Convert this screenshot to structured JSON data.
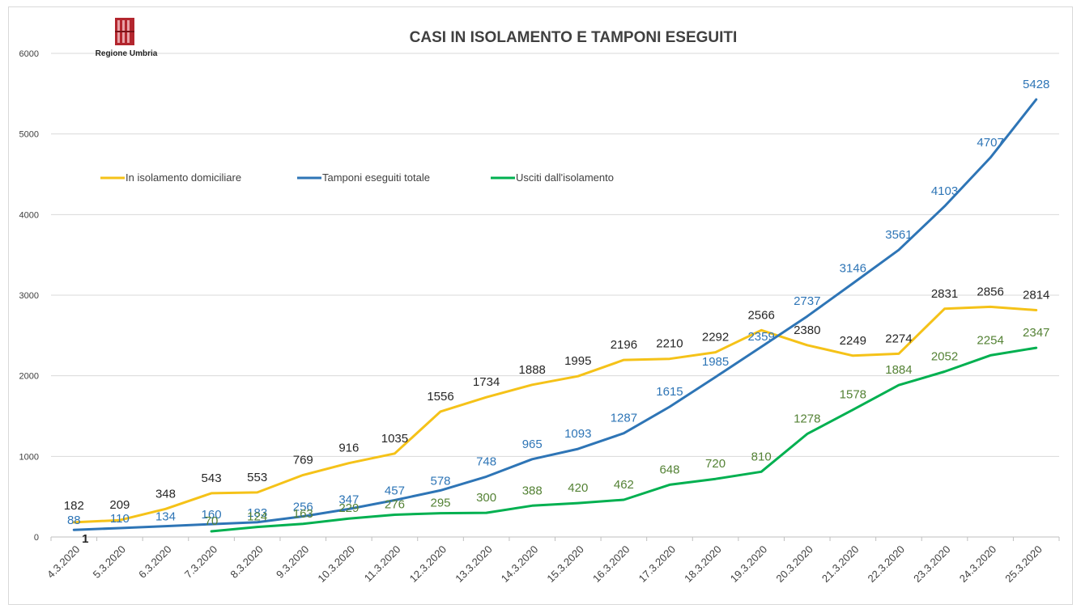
{
  "chart_data": {
    "type": "line",
    "title": "CASI IN ISOLAMENTO E TAMPONI ESEGUITI",
    "logo_text": "Regione Umbria",
    "categories": [
      "4.3.2020",
      "5.3.2020",
      "6.3.2020",
      "7.3.2020",
      "8.3.2020",
      "9.3.2020",
      "10.3.2020",
      "11.3.2020",
      "12.3.2020",
      "13.3.2020",
      "14.3.2020",
      "15.3.2020",
      "16.3.2020",
      "17.3.2020",
      "18.3.2020",
      "19.3.2020",
      "20.3.2020",
      "21.3.2020",
      "22.3.2020",
      "23.3.2020",
      "24.3.2020",
      "25.3.2020"
    ],
    "ylim": [
      0,
      6000
    ],
    "yticks": [
      0,
      1000,
      2000,
      3000,
      4000,
      5000,
      6000
    ],
    "grid": true,
    "legend_position": "top-left",
    "series": [
      {
        "name": "In isolamento domiciliare",
        "color": "#f5c218",
        "label_color": "#262626",
        "values": [
          182,
          209,
          348,
          543,
          553,
          769,
          916,
          1035,
          1556,
          1734,
          1888,
          1995,
          2196,
          2210,
          2292,
          2566,
          2380,
          2249,
          2274,
          2831,
          2856,
          2814
        ]
      },
      {
        "name": "Tamponi eseguiti totale",
        "color": "#2e75b6",
        "label_color": "#2e75b6",
        "values": [
          88,
          110,
          134,
          160,
          183,
          256,
          347,
          457,
          578,
          748,
          965,
          1093,
          1287,
          1615,
          1985,
          2359,
          2737,
          3146,
          3561,
          4103,
          4707,
          5428
        ]
      },
      {
        "name": "Usciti dall'isolamento",
        "color": "#00b050",
        "label_color": "#548235",
        "values": [
          null,
          null,
          null,
          70,
          124,
          163,
          229,
          276,
          295,
          300,
          388,
          420,
          462,
          648,
          720,
          810,
          1278,
          1578,
          1884,
          2052,
          2254,
          2347
        ]
      }
    ],
    "annotations": [
      {
        "text": "1",
        "category": "4.3.2020"
      }
    ]
  }
}
